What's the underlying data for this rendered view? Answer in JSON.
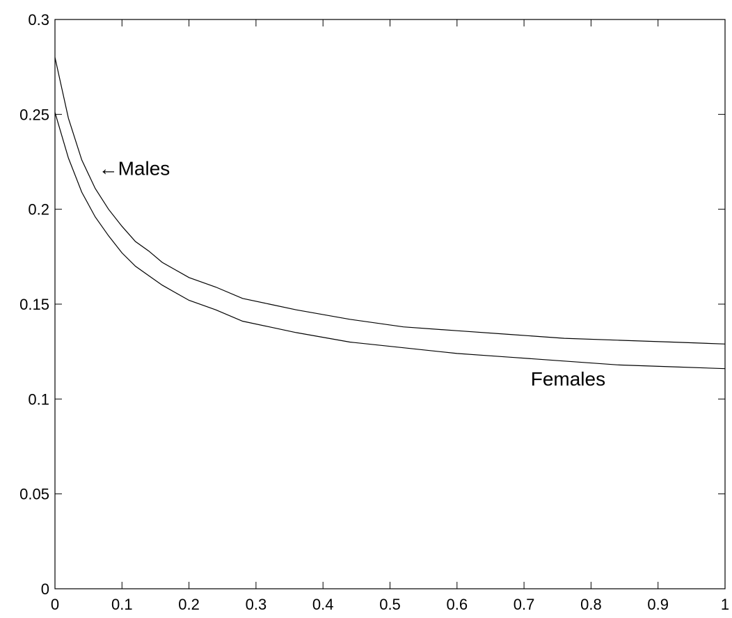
{
  "chart_data": {
    "type": "line",
    "title": "",
    "xlabel": "",
    "ylabel": "",
    "xlim": [
      0,
      1
    ],
    "ylim": [
      0,
      0.3
    ],
    "grid": false,
    "x_ticks": [
      "0",
      "0.1",
      "0.2",
      "0.3",
      "0.4",
      "0.5",
      "0.6",
      "0.7",
      "0.8",
      "0.9",
      "1"
    ],
    "y_ticks": [
      "0",
      "0.05",
      "0.1",
      "0.15",
      "0.2",
      "0.25",
      "0.3"
    ],
    "series": [
      {
        "name": "Males",
        "color": "#000000",
        "points": [
          [
            0,
            0.28
          ],
          [
            0.02,
            0.248
          ],
          [
            0.04,
            0.226
          ],
          [
            0.06,
            0.211
          ],
          [
            0.08,
            0.2
          ],
          [
            0.1,
            0.191
          ],
          [
            0.12,
            0.183
          ],
          [
            0.14,
            0.178
          ],
          [
            0.16,
            0.172
          ],
          [
            0.18,
            0.168
          ],
          [
            0.2,
            0.164
          ],
          [
            0.24,
            0.159
          ],
          [
            0.28,
            0.153
          ],
          [
            0.32,
            0.15
          ],
          [
            0.36,
            0.147
          ],
          [
            0.44,
            0.142
          ],
          [
            0.52,
            0.138
          ],
          [
            0.6,
            0.136
          ],
          [
            0.68,
            0.134
          ],
          [
            0.76,
            0.132
          ],
          [
            0.84,
            0.131
          ],
          [
            0.92,
            0.13
          ],
          [
            1,
            0.129
          ]
        ]
      },
      {
        "name": "Females",
        "color": "#000000",
        "points": [
          [
            0,
            0.251
          ],
          [
            0.02,
            0.227
          ],
          [
            0.04,
            0.209
          ],
          [
            0.06,
            0.196
          ],
          [
            0.08,
            0.186
          ],
          [
            0.1,
            0.177
          ],
          [
            0.12,
            0.17
          ],
          [
            0.14,
            0.165
          ],
          [
            0.16,
            0.16
          ],
          [
            0.18,
            0.156
          ],
          [
            0.2,
            0.152
          ],
          [
            0.24,
            0.147
          ],
          [
            0.28,
            0.141
          ],
          [
            0.32,
            0.138
          ],
          [
            0.36,
            0.135
          ],
          [
            0.44,
            0.13
          ],
          [
            0.52,
            0.127
          ],
          [
            0.6,
            0.124
          ],
          [
            0.68,
            0.122
          ],
          [
            0.76,
            0.12
          ],
          [
            0.84,
            0.118
          ],
          [
            0.92,
            0.117
          ],
          [
            1,
            0.116
          ]
        ]
      }
    ],
    "annotations": [
      {
        "text": "←Males",
        "x": 0.065,
        "y": 0.218
      },
      {
        "text": "Females",
        "x": 0.71,
        "y": 0.107
      }
    ]
  }
}
